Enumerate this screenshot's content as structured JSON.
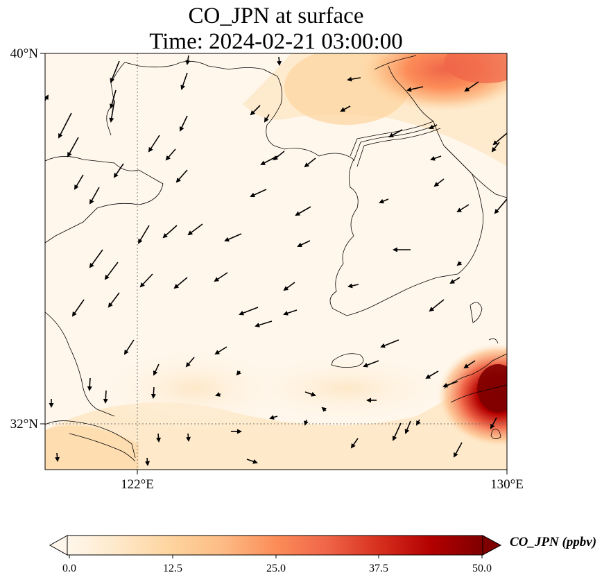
{
  "title": {
    "line1": "CO_JPN at surface",
    "line2": "Time: 2024-02-21 03:00:00"
  },
  "map": {
    "lon_range": [
      120,
      130
    ],
    "lat_range": [
      31,
      40
    ],
    "x_ticks": [
      "122°E",
      "130°E"
    ],
    "y_ticks": [
      "40°N",
      "32°N"
    ],
    "gridlines": "dotted at 122°E and 32°N",
    "field": "CO_JPN concentration (ppbv), plume of high values over northeast corner and southeast corner near Kyushu",
    "vector_field": "wind arrows, mostly toward southwest over the Yellow Sea"
  },
  "colorbar": {
    "label": "CO_JPN (ppbv)",
    "ticks": [
      "0.0",
      "12.5",
      "25.0",
      "37.5",
      "50.0"
    ],
    "colormap": "OrRd",
    "extend": "both",
    "colors": [
      "#fff7ec",
      "#fee8c8",
      "#fdd49e",
      "#fdbb84",
      "#fc8d59",
      "#ef6548",
      "#d7301f",
      "#b30000",
      "#7f0000"
    ]
  }
}
